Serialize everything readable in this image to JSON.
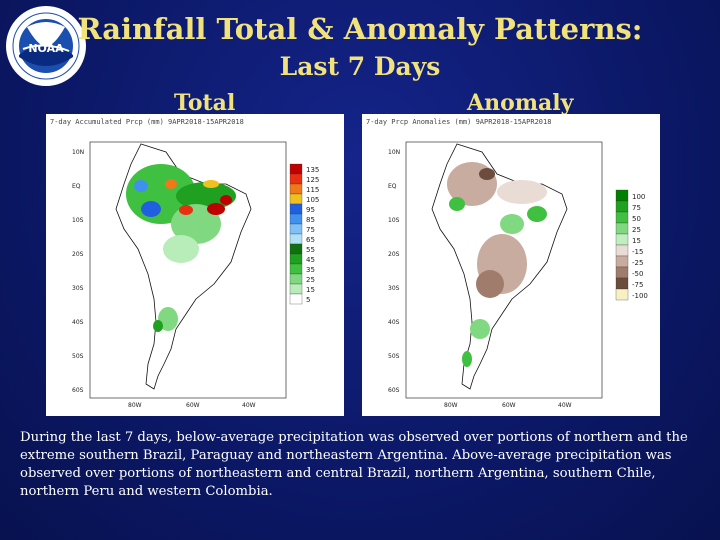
{
  "title_line1": "Rainfall Total & Anomaly Patterns:",
  "title_line2": "Last 7 Days",
  "labels": {
    "total": "Total",
    "anomaly": "Anomaly"
  },
  "total_map": {
    "header": "7-day Accumulated Prcp (mm) 9APR2018-15APR2018",
    "lat_labels": [
      "10N",
      "EQ",
      "10S",
      "20S",
      "30S",
      "40S",
      "50S",
      "60S"
    ],
    "lon_labels": [
      "80W",
      "60W",
      "40W"
    ],
    "colorbar": [
      "135",
      "125",
      "115",
      "105",
      "95",
      "85",
      "75",
      "65",
      "55",
      "45",
      "35",
      "25",
      "15",
      "5"
    ]
  },
  "anomaly_map": {
    "header": "7-day Prcp Anomalies (mm) 9APR2018-15APR2018",
    "lat_labels": [
      "10N",
      "EQ",
      "10S",
      "20S",
      "30S",
      "40S",
      "50S",
      "60S"
    ],
    "lon_labels": [
      "80W",
      "60W",
      "40W"
    ],
    "colorbar": [
      "100",
      "75",
      "50",
      "25",
      "15",
      "-15",
      "-25",
      "-50",
      "-75",
      "-100"
    ]
  },
  "caption": "During the last 7 days, below-average precipitation was observed over portions of northern and the extreme southern Brazil, Paraguay and northeastern Argentina. Above-average precipitation was observed over portions of northeastern and central Brazil, northern Argentina, southern Chile, northern Peru and western Colombia.",
  "logo_text": "NOAA",
  "colors": {
    "background": "#0b1a6a",
    "title": "#f2e27a",
    "total_scale": [
      "#c00000",
      "#e83010",
      "#f07818",
      "#f0c020",
      "#2060e0",
      "#4090f0",
      "#80c0f8",
      "#b0e0f8",
      "#107010",
      "#20a020",
      "#40c040",
      "#80d880",
      "#b8ecb8",
      "#ffffff"
    ],
    "anomaly_scale": [
      "#008000",
      "#20a020",
      "#40c040",
      "#80d880",
      "#c0eec0",
      "#e8dcd4",
      "#c8aca0",
      "#a07c6c",
      "#6c4c3c",
      "#f8f0c0"
    ]
  }
}
